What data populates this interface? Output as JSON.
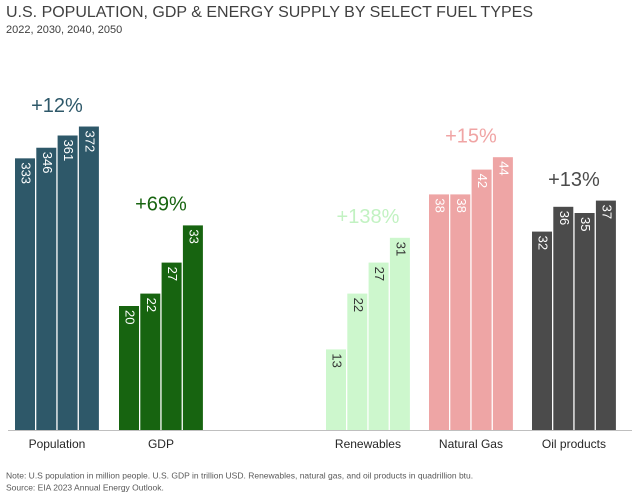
{
  "chart_data": {
    "type": "bar",
    "title": "U.S. POPULATION, GDP & ENERGY SUPPLY BY SELECT FUEL TYPES",
    "subtitle": "2022, 2030, 2040, 2050",
    "ylim": [
      0,
      50
    ],
    "y2lim": [
      0,
      380
    ],
    "groups": [
      {
        "name": "Population",
        "color": "#2e5869",
        "label_color": "#ffffff",
        "axis": "y2",
        "values": [
          333,
          346,
          361,
          372
        ],
        "change": "+12%",
        "change_color": "#2e5869"
      },
      {
        "name": "GDP",
        "color": "#176410",
        "label_color": "#ffffff",
        "values": [
          20,
          22,
          27,
          33
        ],
        "change": "+69%",
        "change_color": "#176410"
      },
      {
        "name": "Renewables",
        "color": "#cdf7cd",
        "label_color": "#333333",
        "values": [
          13,
          22,
          27,
          31
        ],
        "change": "+138%",
        "change_color": "#c2f2c2"
      },
      {
        "name": "Natural Gas",
        "color": "#eea5a5",
        "label_color": "#ffffff",
        "values": [
          38,
          38,
          42,
          44
        ],
        "change": "+15%",
        "change_color": "#f0a4a4"
      },
      {
        "name": "Oil products",
        "color": "#4b4b4b",
        "label_color": "#ffffff",
        "values": [
          32,
          36,
          35,
          37
        ],
        "change": "+13%",
        "change_color": "#4b4b4b"
      }
    ],
    "notes": [
      "Note:  U.S population in million people. U.S. GDP in trillion USD. Renewables, natural gas, and oil products in quadrillion btu.",
      "Source:  EIA 2023 Annual Energy Outlook."
    ]
  }
}
